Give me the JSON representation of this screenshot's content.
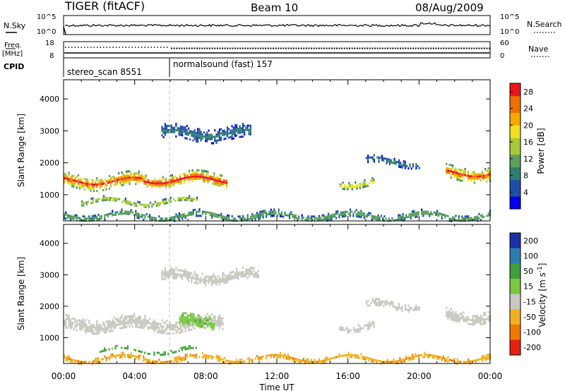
{
  "header": {
    "radar": "TIGER (fitACF)",
    "beam": "Beam 10",
    "date": "08/Aug/2009"
  },
  "sky_noise_panel": {
    "left_label": "N.Sky",
    "right_label": "N.Search",
    "left_ticks": [
      "10^5",
      "10^0"
    ],
    "right_ticks": [
      "10^5",
      "10^0"
    ]
  },
  "freq_panel": {
    "left_label_top": "Freq.",
    "left_label_bottom": "[MHz]",
    "right_label": "Nave",
    "left_ticks": [
      "18",
      "8"
    ],
    "right_ticks": [
      "60",
      "0"
    ]
  },
  "cpid_panel": {
    "label": "CPID",
    "segments": [
      {
        "name": "stereo_scan 8551",
        "start_hour": 0,
        "end_hour": 6
      },
      {
        "name": "normalsound (fast) 157",
        "start_hour": 6,
        "end_hour": 24
      }
    ]
  },
  "chart_data": [
    {
      "type": "heatmap",
      "title": "Power",
      "xlabel": "Time UT",
      "ylabel": "Slant Range [km]",
      "x_ticks": [
        "00:00",
        "04:00",
        "08:00",
        "12:00",
        "16:00",
        "20:00",
        "00:00"
      ],
      "x_range_hours": [
        0,
        24
      ],
      "y_ticks": [
        1000,
        2000,
        3000,
        4000
      ],
      "y_range_km": [
        180,
        4600
      ],
      "colorbar_label": "Power [dB]",
      "colorbar_ticks": [
        4,
        8,
        12,
        16,
        20,
        24,
        28
      ],
      "colorbar_range": [
        0,
        30
      ],
      "colors": [
        "#0000ee",
        "#1f4fa8",
        "#2f7f6f",
        "#5aa05a",
        "#a8c838",
        "#f0e020",
        "#f5a800",
        "#f07000",
        "#e81818"
      ],
      "echo_regions": [
        {
          "start_hour": 0.0,
          "end_hour": 4.5,
          "center_km": 1450,
          "thickness_km": 420,
          "peak_db": 28
        },
        {
          "start_hour": 4.5,
          "end_hour": 9.2,
          "center_km": 1500,
          "thickness_km": 380,
          "peak_db": 30
        },
        {
          "start_hour": 1.0,
          "end_hour": 7.5,
          "center_km": 800,
          "thickness_km": 180,
          "peak_db": 18
        },
        {
          "start_hour": 5.5,
          "end_hour": 10.5,
          "center_km": 2950,
          "thickness_km": 400,
          "peak_db": 8
        },
        {
          "start_hour": 15.5,
          "end_hour": 17.5,
          "center_km": 1400,
          "thickness_km": 220,
          "peak_db": 20
        },
        {
          "start_hour": 17.0,
          "end_hour": 20.0,
          "center_km": 2050,
          "thickness_km": 220,
          "peak_db": 8
        },
        {
          "start_hour": 21.5,
          "end_hour": 24.0,
          "center_km": 1700,
          "thickness_km": 420,
          "peak_db": 28
        },
        {
          "start_hour": 0.0,
          "end_hour": 24.0,
          "center_km": 360,
          "thickness_km": 200,
          "peak_db": 14
        }
      ]
    },
    {
      "type": "heatmap",
      "title": "Velocity",
      "xlabel": "Time UT",
      "ylabel": "Slant Range [km]",
      "x_ticks": [
        "00:00",
        "04:00",
        "08:00",
        "12:00",
        "16:00",
        "20:00",
        "00:00"
      ],
      "x_range_hours": [
        0,
        24
      ],
      "y_ticks": [
        1000,
        2000,
        3000,
        4000
      ],
      "y_range_km": [
        180,
        4600
      ],
      "colorbar_label": "Velocity [m s^-1]",
      "colorbar_ticks": [
        "200",
        "100",
        "50",
        "15",
        "-15",
        "-50",
        "-100",
        "-200"
      ],
      "colors": [
        "#1a2fa8",
        "#2e7fb0",
        "#3f9f3f",
        "#7ac840",
        "#c8c8c0",
        "#f0b020",
        "#f07800",
        "#e82010"
      ],
      "ground_scatter_color": "#c8c8c0",
      "echo_regions": [
        {
          "start_hour": 0.0,
          "end_hour": 9.0,
          "center_km": 1450,
          "thickness_km": 450,
          "velocity_ms": 0
        },
        {
          "start_hour": 2.0,
          "end_hour": 7.5,
          "center_km": 620,
          "thickness_km": 90,
          "velocity_ms": 60
        },
        {
          "start_hour": 6.5,
          "end_hour": 8.5,
          "center_km": 1500,
          "thickness_km": 400,
          "velocity_ms": 40
        },
        {
          "start_hour": 5.5,
          "end_hour": 11.0,
          "center_km": 2950,
          "thickness_km": 400,
          "velocity_ms": 0
        },
        {
          "start_hour": 15.5,
          "end_hour": 17.5,
          "center_km": 1400,
          "thickness_km": 220,
          "velocity_ms": 0
        },
        {
          "start_hour": 17.0,
          "end_hour": 20.0,
          "center_km": 2050,
          "thickness_km": 220,
          "velocity_ms": 0
        },
        {
          "start_hour": 21.5,
          "end_hour": 24.0,
          "center_km": 1700,
          "thickness_km": 400,
          "velocity_ms": 0
        },
        {
          "start_hour": 0.0,
          "end_hour": 24.0,
          "center_km": 360,
          "thickness_km": 160,
          "velocity_ms": -40
        }
      ]
    }
  ]
}
